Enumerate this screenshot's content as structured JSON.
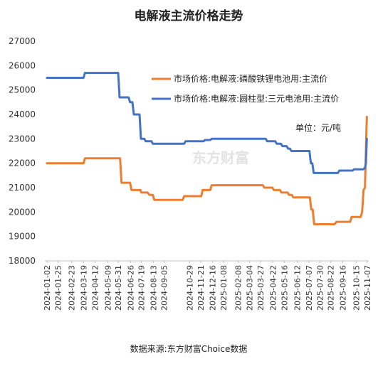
{
  "chart_data": {
    "type": "line",
    "title": "电解液主流价格走势",
    "unit_note": "单位：元/吨",
    "source": "数据来源:东方财富Choice数据",
    "watermark": "东方财富",
    "ylim": [
      18000,
      27000
    ],
    "yticks": [
      "27000",
      "26000",
      "25000",
      "24000",
      "23000",
      "22000",
      "21000",
      "20000",
      "19000",
      "18000"
    ],
    "x_tick_labels": [
      "2024-01-02",
      "2024-01-25",
      "2024-02-23",
      "2024-03-19",
      "2024-04-12",
      "2024-05-09",
      "2024-05-31",
      "2024-06-26",
      "2024-07-19",
      "2024-08-13",
      "2024-09-05",
      "2024-10-29",
      "2024-11-21",
      "2024-12-16",
      "2025-01-08",
      "2025-02-08",
      "2025-03-04",
      "2025-03-27",
      "2025-04-22",
      "2025-05-16",
      "2025-06-12",
      "2025-07-07",
      "2025-07-30",
      "2025-08-22",
      "2025-09-16",
      "2025-10-15",
      "2025-11-07"
    ],
    "grid": false,
    "legend_position": "top-right",
    "series": [
      {
        "name": "市场价格:电解液:磷酸铁锂电池用:主流价",
        "color": "#ed7d31",
        "points": [
          [
            "2024-01-02",
            22000
          ],
          [
            "2024-03-19",
            22000
          ],
          [
            "2024-03-22",
            22200
          ],
          [
            "2024-06-04",
            22200
          ],
          [
            "2024-06-07",
            21200
          ],
          [
            "2024-06-25",
            21200
          ],
          [
            "2024-06-28",
            20900
          ],
          [
            "2024-07-17",
            20900
          ],
          [
            "2024-07-19",
            20800
          ],
          [
            "2024-08-01",
            20800
          ],
          [
            "2024-08-05",
            20700
          ],
          [
            "2024-08-12",
            20700
          ],
          [
            "2024-08-15",
            20500
          ],
          [
            "2024-10-14",
            20500
          ],
          [
            "2024-10-17",
            20650
          ],
          [
            "2024-11-22",
            20650
          ],
          [
            "2024-11-25",
            20900
          ],
          [
            "2024-12-11",
            20900
          ],
          [
            "2024-12-14",
            21100
          ],
          [
            "2025-04-01",
            21100
          ],
          [
            "2025-04-04",
            21000
          ],
          [
            "2025-04-21",
            21000
          ],
          [
            "2025-04-24",
            20900
          ],
          [
            "2025-05-07",
            20900
          ],
          [
            "2025-05-10",
            20800
          ],
          [
            "2025-05-23",
            20800
          ],
          [
            "2025-05-26",
            20700
          ],
          [
            "2025-06-01",
            20700
          ],
          [
            "2025-06-04",
            20600
          ],
          [
            "2025-07-09",
            20600
          ],
          [
            "2025-07-12",
            20100
          ],
          [
            "2025-07-15",
            20100
          ],
          [
            "2025-07-18",
            19500
          ],
          [
            "2025-08-30",
            19500
          ],
          [
            "2025-09-03",
            19600
          ],
          [
            "2025-10-02",
            19600
          ],
          [
            "2025-10-05",
            19800
          ],
          [
            "2025-10-24",
            19800
          ],
          [
            "2025-10-27",
            20000
          ],
          [
            "2025-10-30",
            20900
          ],
          [
            "2025-11-02",
            21000
          ],
          [
            "2025-11-04",
            22500
          ],
          [
            "2025-11-06",
            23900
          ]
        ]
      },
      {
        "name": "市场价格:电解液:圆柱型:三元电池用:主流价",
        "color": "#4472c4",
        "points": [
          [
            "2024-01-02",
            25500
          ],
          [
            "2024-03-19",
            25500
          ],
          [
            "2024-03-22",
            25700
          ],
          [
            "2024-05-31",
            25700
          ],
          [
            "2024-06-03",
            24700
          ],
          [
            "2024-06-22",
            24700
          ],
          [
            "2024-06-25",
            24500
          ],
          [
            "2024-06-30",
            24500
          ],
          [
            "2024-07-03",
            24000
          ],
          [
            "2024-07-15",
            24000
          ],
          [
            "2024-07-18",
            23000
          ],
          [
            "2024-07-25",
            23000
          ],
          [
            "2024-07-28",
            22900
          ],
          [
            "2024-08-09",
            22900
          ],
          [
            "2024-08-12",
            22800
          ],
          [
            "2024-10-17",
            22800
          ],
          [
            "2024-10-20",
            22900
          ],
          [
            "2024-11-27",
            22900
          ],
          [
            "2024-11-30",
            22950
          ],
          [
            "2024-12-11",
            22950
          ],
          [
            "2024-12-14",
            23000
          ],
          [
            "2025-04-07",
            23000
          ],
          [
            "2025-04-10",
            22900
          ],
          [
            "2025-04-27",
            22900
          ],
          [
            "2025-04-30",
            22800
          ],
          [
            "2025-05-09",
            22800
          ],
          [
            "2025-05-12",
            22700
          ],
          [
            "2025-05-21",
            22700
          ],
          [
            "2025-05-24",
            22600
          ],
          [
            "2025-05-28",
            22600
          ],
          [
            "2025-05-31",
            22500
          ],
          [
            "2025-07-08",
            22500
          ],
          [
            "2025-07-11",
            22000
          ],
          [
            "2025-07-14",
            22000
          ],
          [
            "2025-07-17",
            21600
          ],
          [
            "2025-09-06",
            21600
          ],
          [
            "2025-09-09",
            21700
          ],
          [
            "2025-10-07",
            21700
          ],
          [
            "2025-10-10",
            21750
          ],
          [
            "2025-10-29",
            21750
          ],
          [
            "2025-11-02",
            21800
          ],
          [
            "2025-11-04",
            22000
          ],
          [
            "2025-11-06",
            23000
          ]
        ]
      }
    ]
  }
}
